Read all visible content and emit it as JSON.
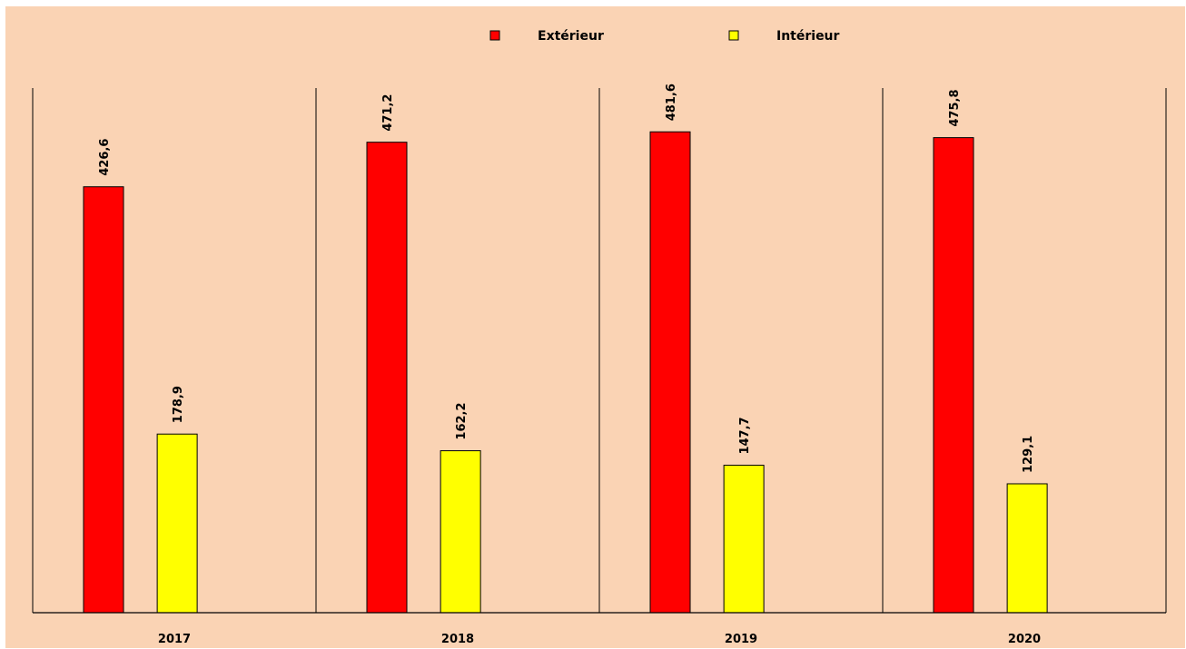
{
  "chart_data": {
    "type": "bar",
    "categories": [
      "2017",
      "2018",
      "2019",
      "2020"
    ],
    "series": [
      {
        "name": "Extérieur",
        "values": [
          426.6,
          471.2,
          481.6,
          475.8
        ],
        "labels": [
          "426,6",
          "471,2",
          "481,6",
          "475,8"
        ],
        "color": "#ff0000"
      },
      {
        "name": "Intérieur",
        "values": [
          178.9,
          162.2,
          147.7,
          129.1
        ],
        "labels": [
          "178,9",
          "162,2",
          "147,7",
          "129,1"
        ],
        "color": "#ffff00"
      }
    ],
    "title": "",
    "xlabel": "",
    "ylabel": "",
    "ylim": [
      0,
      550
    ],
    "legend_position": "top-center",
    "background": "#fad3b4",
    "grid": false
  }
}
